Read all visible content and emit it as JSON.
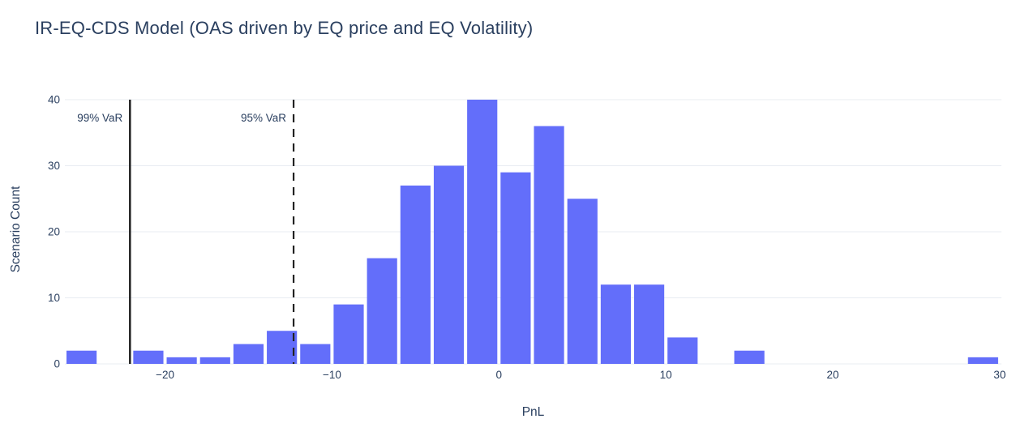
{
  "chart_data": {
    "type": "bar",
    "subtype": "histogram",
    "title": "IR-EQ-CDS Model (OAS driven by EQ price and EQ Volatility)",
    "xlabel": "PnL",
    "ylabel": "Scenario Count",
    "xlim": [
      -26,
      30.1
    ],
    "ylim": [
      0,
      40
    ],
    "grid": true,
    "legend_position": "none",
    "x_tick_values": [
      -20,
      -10,
      0,
      10,
      20,
      30
    ],
    "x_tick_labels": [
      "−20",
      "−10",
      "0",
      "10",
      "20",
      "30"
    ],
    "y_tick_values": [
      0,
      10,
      20,
      30,
      40
    ],
    "y_tick_labels": [
      "0",
      "10",
      "20",
      "30",
      "40"
    ],
    "bin_width": 2,
    "bins": [
      {
        "from": -26,
        "to": -24,
        "count": 2
      },
      {
        "from": -22,
        "to": -20,
        "count": 2
      },
      {
        "from": -20,
        "to": -18,
        "count": 1
      },
      {
        "from": -18,
        "to": -16,
        "count": 1
      },
      {
        "from": -16,
        "to": -14,
        "count": 3
      },
      {
        "from": -14,
        "to": -12,
        "count": 5
      },
      {
        "from": -12,
        "to": -10,
        "count": 3
      },
      {
        "from": -10,
        "to": -8,
        "count": 9
      },
      {
        "from": -8,
        "to": -6,
        "count": 16
      },
      {
        "from": -6,
        "to": -4,
        "count": 27
      },
      {
        "from": -4,
        "to": -2,
        "count": 30
      },
      {
        "from": -2,
        "to": 0,
        "count": 40
      },
      {
        "from": 0,
        "to": 2,
        "count": 29
      },
      {
        "from": 2,
        "to": 4,
        "count": 36
      },
      {
        "from": 4,
        "to": 6,
        "count": 25
      },
      {
        "from": 6,
        "to": 8,
        "count": 12
      },
      {
        "from": 8,
        "to": 10,
        "count": 12
      },
      {
        "from": 10,
        "to": 12,
        "count": 4
      },
      {
        "from": 14,
        "to": 16,
        "count": 2
      },
      {
        "from": 28,
        "to": 30,
        "count": 1
      }
    ],
    "vlines": [
      {
        "label": "99% VaR",
        "x": -22.1,
        "style": "solid"
      },
      {
        "label": "95% VaR",
        "x": -12.3,
        "style": "dashed"
      }
    ],
    "colors": {
      "bar": "#636EFA",
      "vline": "#222222",
      "grid": "#E8ECF2",
      "text": "#2A3F5F",
      "background": "#FFFFFF"
    }
  }
}
